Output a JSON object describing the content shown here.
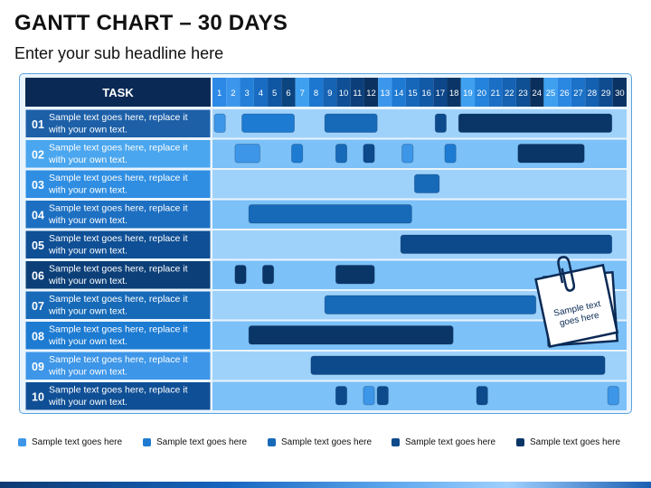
{
  "header": {
    "title": "GANTT CHART – 30 DAYS",
    "subtitle": "Enter your sub headline here"
  },
  "chart_data": {
    "type": "gantt",
    "task_header": "TASK",
    "days": [
      "1",
      "2",
      "3",
      "4",
      "5",
      "6",
      "7",
      "8",
      "9",
      "10",
      "11",
      "12",
      "13",
      "14",
      "15",
      "16",
      "17",
      "18",
      "19",
      "20",
      "21",
      "22",
      "23",
      "24",
      "25",
      "26",
      "27",
      "28",
      "29",
      "30"
    ],
    "tasks": [
      {
        "id": "01",
        "label": "Sample text goes here, replace it with your own text.",
        "bars": [
          [
            1,
            2,
            "#3d96e8"
          ],
          [
            3,
            7,
            "#1d7bd2"
          ],
          [
            9,
            13,
            "#176ab8"
          ],
          [
            17,
            18,
            "#0c4a8b"
          ],
          [
            18.7,
            30,
            "#0a3567"
          ]
        ]
      },
      {
        "id": "02",
        "label": "Sample text goes here, replace it with your own text.",
        "bars": [
          [
            2.5,
            4.5,
            "#3d96e8"
          ],
          [
            6.6,
            7.6,
            "#1d7bd2"
          ],
          [
            9.8,
            10.8,
            "#176ab8"
          ],
          [
            11.8,
            12.8,
            "#0c4a8b"
          ],
          [
            14.6,
            15.6,
            "#3d96e8"
          ],
          [
            17.7,
            18.7,
            "#1d7bd2"
          ],
          [
            23,
            28,
            "#0a3567"
          ]
        ]
      },
      {
        "id": "03",
        "label": "Sample text goes here, replace it with your own text.",
        "bars": [
          [
            15.5,
            17.5,
            "#176ab8"
          ]
        ]
      },
      {
        "id": "04",
        "label": "Sample text goes here, replace it with your own text.",
        "bars": [
          [
            3.5,
            15.5,
            "#176ab8"
          ]
        ]
      },
      {
        "id": "05",
        "label": "Sample text goes here, replace it with your own text.",
        "bars": [
          [
            14.5,
            30,
            "#0c4a8b"
          ]
        ]
      },
      {
        "id": "06",
        "label": "Sample text goes here, replace it with your own text.",
        "bars": [
          [
            2.5,
            3.5,
            "#0a3567"
          ],
          [
            4.5,
            5.5,
            "#0a3567"
          ],
          [
            9.8,
            12.8,
            "#0a3567"
          ]
        ]
      },
      {
        "id": "07",
        "label": "Sample text goes here, replace it with your own text.",
        "bars": [
          [
            9,
            24.5,
            "#176ab8"
          ]
        ]
      },
      {
        "id": "08",
        "label": "Sample text goes here, replace it with your own text.",
        "bars": [
          [
            3.5,
            18.5,
            "#0a3567"
          ]
        ]
      },
      {
        "id": "09",
        "label": "Sample text goes here, replace it with your own text.",
        "bars": [
          [
            8,
            29.5,
            "#0c4a8b"
          ]
        ]
      },
      {
        "id": "10",
        "label": "Sample text goes here, replace it with your own text.",
        "bars": [
          [
            9.8,
            10.8,
            "#0c4a8b"
          ],
          [
            11.8,
            12.8,
            "#3d96e8"
          ],
          [
            12.8,
            13.8,
            "#0c4a8b"
          ],
          [
            20,
            21,
            "#0c4a8b"
          ],
          [
            29.5,
            30.5,
            "#3d96e8"
          ]
        ]
      }
    ],
    "note": "Sample text goes here"
  },
  "legend": [
    {
      "label": "Sample text goes here",
      "color": "#3d96e8"
    },
    {
      "label": "Sample text goes here",
      "color": "#1d7bd2"
    },
    {
      "label": "Sample text goes here",
      "color": "#176ab8"
    },
    {
      "label": "Sample text goes here",
      "color": "#0c4a8b"
    },
    {
      "label": "Sample text goes here",
      "color": "#0a3567"
    }
  ]
}
